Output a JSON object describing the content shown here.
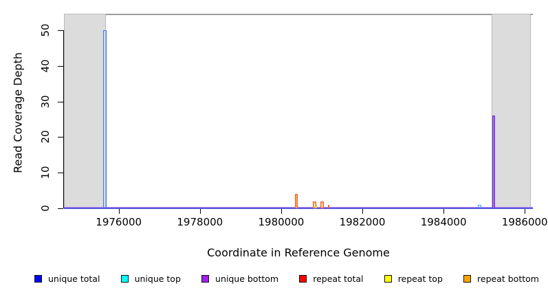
{
  "chart_data": {
    "type": "bar",
    "subtype": "genome-read-coverage-histogram",
    "title": "",
    "xlabel": "Coordinate in Reference Genome",
    "ylabel": "Read Coverage Depth",
    "xlim": [
      1974650,
      1986200
    ],
    "ylim": [
      0,
      55
    ],
    "grid": false,
    "legend_position": "bottom",
    "x_ticks": [
      {
        "value": 1976000,
        "label": "1976000"
      },
      {
        "value": 1978000,
        "label": "1978000"
      },
      {
        "value": 1980000,
        "label": "1980000"
      },
      {
        "value": 1982000,
        "label": "1982000"
      },
      {
        "value": 1984000,
        "label": "1984000"
      },
      {
        "value": 1986000,
        "label": "1986000"
      }
    ],
    "y_ticks": [
      {
        "value": 0,
        "label": "0"
      },
      {
        "value": 10,
        "label": "10"
      },
      {
        "value": 20,
        "label": "20"
      },
      {
        "value": 30,
        "label": "30"
      },
      {
        "value": 40,
        "label": "40"
      },
      {
        "value": 50,
        "label": "50"
      }
    ],
    "shaded_regions": [
      {
        "x0": 1974650,
        "x1": 1975690
      },
      {
        "x0": 1985190,
        "x1": 1986150
      }
    ],
    "shade_fill": "#dcdcdc",
    "shade_border": "#b8b8b8",
    "reference_line_color": "#9c9c9c",
    "baseline_colors": [
      "#9b79ec",
      "#4a4ae0"
    ],
    "bars": [
      {
        "x0": 1975610,
        "x1": 1975698,
        "height": 50,
        "series": "unique total",
        "color": "#2e7af0"
      },
      {
        "x0": 1980340,
        "x1": 1980412,
        "height": 4,
        "series": "repeat total",
        "color": "#ee5f38",
        "inner": "#ffa050"
      },
      {
        "x0": 1980780,
        "x1": 1980868,
        "height": 2,
        "series": "repeat total",
        "color": "#ee5f38",
        "inner": "#ffa050"
      },
      {
        "x0": 1980825,
        "x1": 1980890,
        "height": 1,
        "series": "repeat top",
        "color": "#f0a828",
        "inner": "#ffd84d"
      },
      {
        "x0": 1980966,
        "x1": 1981050,
        "height": 2,
        "series": "repeat total",
        "color": "#ee5f38",
        "inner": "#ffa050"
      },
      {
        "x0": 1981150,
        "x1": 1981195,
        "height": 1,
        "series": "repeat total",
        "color": "#ee5f38",
        "inner": "#ffa050"
      },
      {
        "x0": 1984852,
        "x1": 1984938,
        "height": 1,
        "series": "unique top",
        "color": "#2aa1f5"
      },
      {
        "x0": 1985200,
        "x1": 1985272,
        "height": 26,
        "series": "unique bottom",
        "color": "#7c2ae0",
        "inner": "#a06ce8"
      }
    ],
    "legend": [
      {
        "label": "unique total",
        "color": "#0000ff"
      },
      {
        "label": "unique top",
        "color": "#00ffff"
      },
      {
        "label": "unique bottom",
        "color": "#a020f0"
      },
      {
        "label": "repeat total",
        "color": "#ff0000"
      },
      {
        "label": "repeat top",
        "color": "#ffff00"
      },
      {
        "label": "repeat bottom",
        "color": "#ffa500"
      }
    ]
  }
}
